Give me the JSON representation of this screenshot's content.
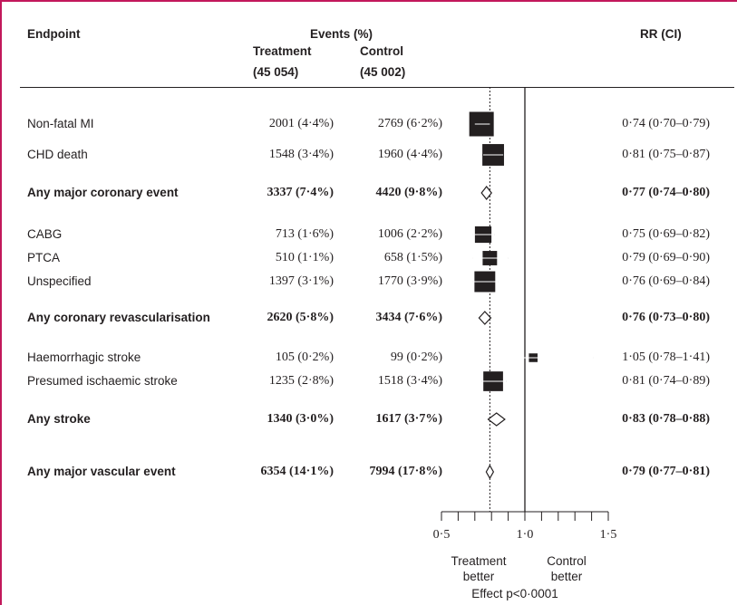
{
  "headers": {
    "endpoint": "Endpoint",
    "events": "Events (%)",
    "treatment": "Treatment",
    "treatment_n": "(45 054)",
    "control": "Control",
    "control_n": "(45 002)",
    "rr": "RR (CI)"
  },
  "rows": [
    {
      "label": "Non-fatal MI",
      "treatment": "2001 (4·4%)",
      "control": "2769 (6·2%)",
      "rr_text": "0·74 (0·70–0·79)",
      "bold": false
    },
    {
      "label": "CHD death",
      "treatment": "1548 (3·4%)",
      "control": "1960 (4·4%)",
      "rr_text": "0·81 (0·75–0·87)",
      "bold": false
    },
    {
      "label": "Any major coronary event",
      "treatment": "3337 (7·4%)",
      "control": "4420 (9·8%)",
      "rr_text": "0·77 (0·74–0·80)",
      "bold": true
    },
    {
      "label": "CABG",
      "treatment": "713 (1·6%)",
      "control": "1006 (2·2%)",
      "rr_text": "0·75 (0·69–0·82)",
      "bold": false
    },
    {
      "label": "PTCA",
      "treatment": "510 (1·1%)",
      "control": "658 (1·5%)",
      "rr_text": "0·79 (0·69–0·90)",
      "bold": false
    },
    {
      "label": "Unspecified",
      "treatment": "1397 (3·1%)",
      "control": "1770 (3·9%)",
      "rr_text": "0·76 (0·69–0·84)",
      "bold": false
    },
    {
      "label": "Any coronary revascularisation",
      "treatment": "2620 (5·8%)",
      "control": "3434 (7·6%)",
      "rr_text": "0·76 (0·73–0·80)",
      "bold": true
    },
    {
      "label": "Haemorrhagic stroke",
      "treatment": "105 (0·2%)",
      "control": "99 (0·2%)",
      "rr_text": "1·05 (0·78–1·41)",
      "bold": false
    },
    {
      "label": "Presumed ischaemic stroke",
      "treatment": "1235 (2·8%)",
      "control": "1518 (3·4%)",
      "rr_text": "0·81 (0·74–0·89)",
      "bold": false
    },
    {
      "label": "Any stroke",
      "treatment": "1340 (3·0%)",
      "control": "1617 (3·7%)",
      "rr_text": "0·83 (0·78–0·88)",
      "bold": true
    },
    {
      "label": "Any major vascular event",
      "treatment": "6354 (14·1%)",
      "control": "7994 (17·8%)",
      "rr_text": "0·79 (0·77–0·81)",
      "bold": true
    }
  ],
  "axis": {
    "tick_labels": [
      "0·5",
      "1·0",
      "1·5"
    ],
    "left_label_1": "Treatment",
    "left_label_2": "better",
    "right_label_1": "Control",
    "right_label_2": "better",
    "effect_label": "Effect p<0·0001"
  },
  "chart_data": {
    "type": "forest",
    "x_range": [
      0.5,
      1.5
    ],
    "x_ticks": [
      0.5,
      0.6,
      0.7,
      0.8,
      0.9,
      1.0,
      1.1,
      1.2,
      1.3,
      1.4,
      1.5
    ],
    "x_tick_labels": [
      "0·5",
      "1·0",
      "1·5"
    ],
    "null_value": 1.0,
    "overall_value": 0.79,
    "points": [
      {
        "label": "Non-fatal MI",
        "rr": 0.74,
        "lo": 0.7,
        "hi": 0.79,
        "marker": "square",
        "weight": 4769
      },
      {
        "label": "CHD death",
        "rr": 0.81,
        "lo": 0.75,
        "hi": 0.87,
        "marker": "square",
        "weight": 3508
      },
      {
        "label": "Any major coronary event",
        "rr": 0.77,
        "lo": 0.74,
        "hi": 0.8,
        "marker": "diamond"
      },
      {
        "label": "CABG",
        "rr": 0.75,
        "lo": 0.69,
        "hi": 0.82,
        "marker": "square",
        "weight": 1719
      },
      {
        "label": "PTCA",
        "rr": 0.79,
        "lo": 0.69,
        "hi": 0.9,
        "marker": "square",
        "weight": 1168
      },
      {
        "label": "Unspecified",
        "rr": 0.76,
        "lo": 0.69,
        "hi": 0.84,
        "marker": "square",
        "weight": 3167
      },
      {
        "label": "Any coronary revascularisation",
        "rr": 0.76,
        "lo": 0.73,
        "hi": 0.8,
        "marker": "diamond"
      },
      {
        "label": "Haemorrhagic stroke",
        "rr": 1.05,
        "lo": 0.78,
        "hi": 1.41,
        "marker": "square",
        "weight": 204
      },
      {
        "label": "Presumed ischaemic stroke",
        "rr": 0.81,
        "lo": 0.74,
        "hi": 0.89,
        "marker": "square",
        "weight": 2753
      },
      {
        "label": "Any stroke",
        "rr": 0.83,
        "lo": 0.78,
        "hi": 0.88,
        "marker": "diamond"
      },
      {
        "label": "Any major vascular event",
        "rr": 0.79,
        "lo": 0.77,
        "hi": 0.81,
        "marker": "diamond"
      }
    ]
  },
  "colors": {
    "frame": "#c2185b",
    "ink": "#231f20"
  }
}
